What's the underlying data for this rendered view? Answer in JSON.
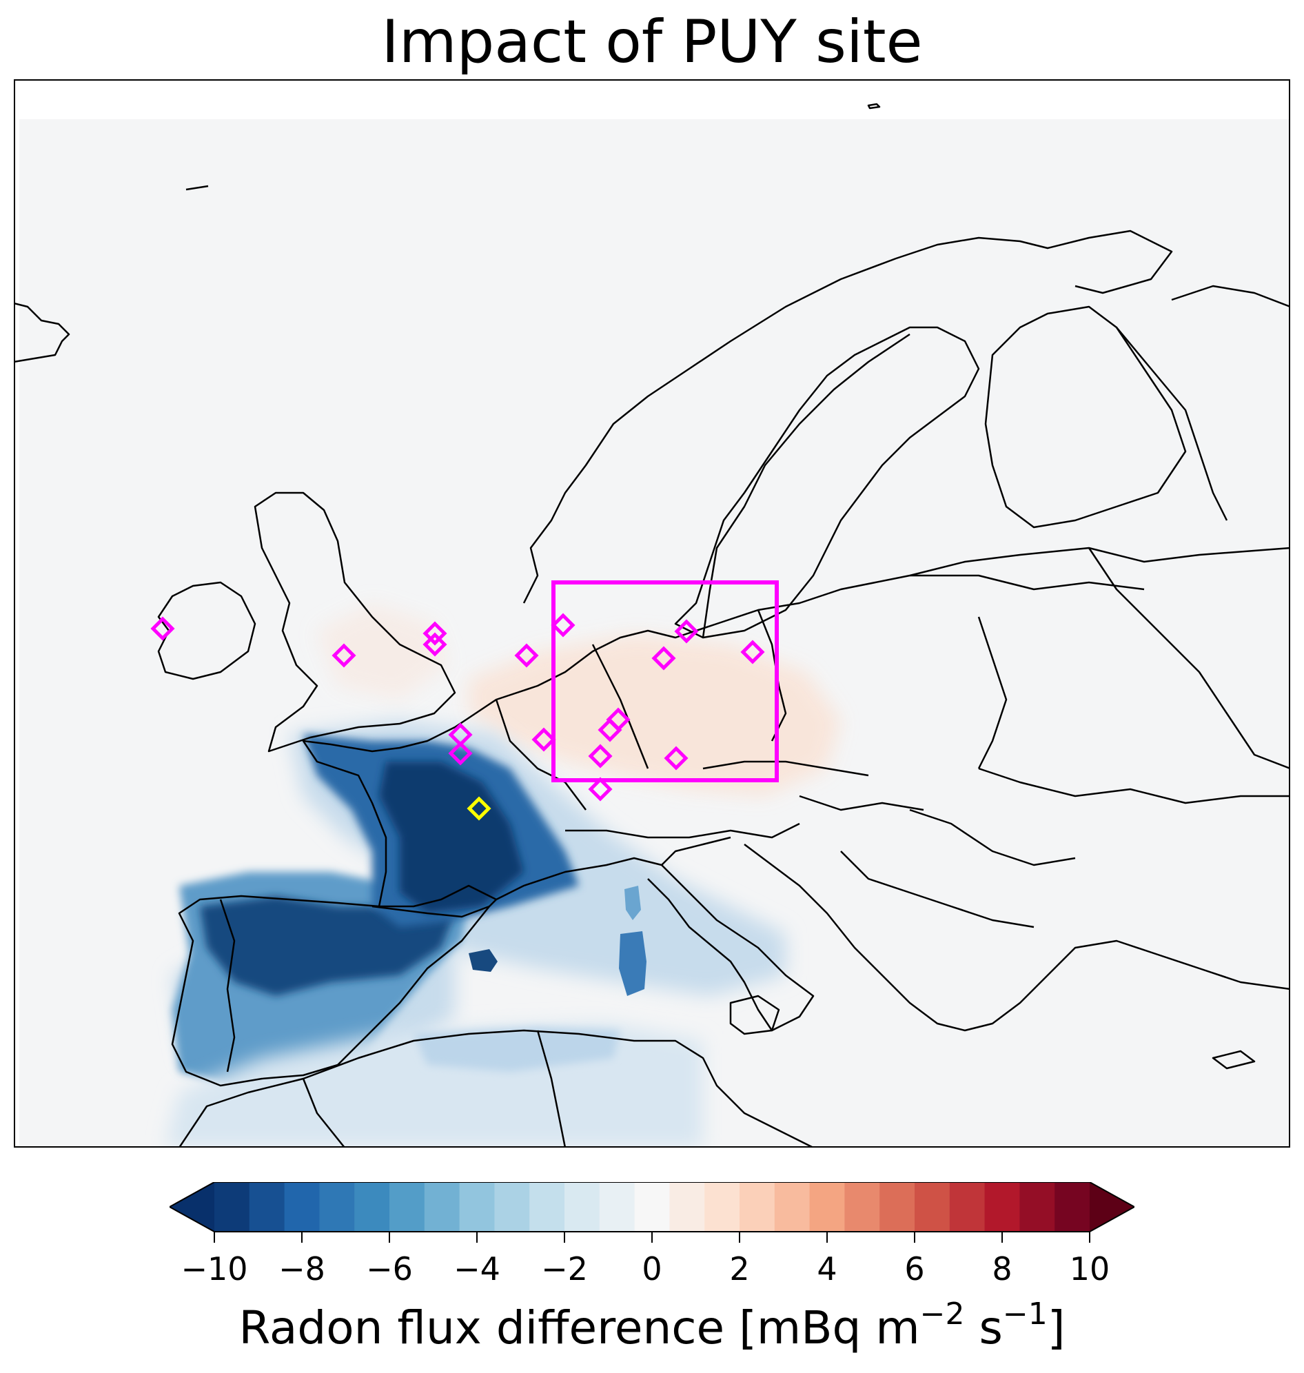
{
  "title": "Impact of PUY site",
  "colorbar": {
    "label_main": "Radon flux difference [mBq m",
    "label_exp1": "−2",
    "label_mid": " s",
    "label_exp2": "−1",
    "label_end": "]",
    "ticks": [
      "−10",
      "−8",
      "−6",
      "−4",
      "−2",
      "0",
      "2",
      "4",
      "6",
      "8",
      "10"
    ],
    "range": [
      -10,
      10
    ],
    "levels": 25,
    "colormap": "RdBu_r",
    "extend": "both"
  },
  "colors": {
    "site_marker": "#ff00ff",
    "highlighted_site": "#ffff00",
    "region_box": "#ff00ff",
    "background_field": "#f4f5f6"
  },
  "map": {
    "projection": "Europe",
    "highlighted_site": "PUY"
  }
}
